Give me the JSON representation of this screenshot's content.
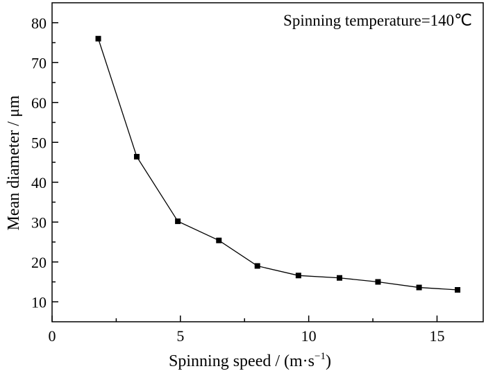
{
  "chart_data": {
    "type": "line",
    "annotation": "Spinning temperature=140℃",
    "xlabel_main": "Spinning speed / (m·s",
    "xlabel_sup": "−1",
    "xlabel_end": ")",
    "ylabel": "Mean diameter / μm",
    "xlim": [
      0,
      16.8
    ],
    "ylim": [
      5,
      85
    ],
    "x_ticks": [
      0,
      5,
      10,
      15
    ],
    "y_ticks": [
      10,
      20,
      30,
      40,
      50,
      60,
      70,
      80
    ],
    "x_tick_labels": [
      "0",
      "5",
      "10",
      "15"
    ],
    "y_tick_labels": [
      "10",
      "20",
      "30",
      "40",
      "50",
      "60",
      "70",
      "80"
    ],
    "grid": false,
    "marker": "square",
    "series": [
      {
        "x": [
          1.8,
          3.3,
          4.9,
          6.5,
          8.0,
          9.6,
          11.2,
          12.7,
          14.3,
          15.8
        ],
        "y": [
          76.0,
          46.4,
          30.2,
          25.4,
          19.0,
          16.6,
          16.0,
          15.0,
          13.6,
          13.0
        ]
      }
    ]
  }
}
